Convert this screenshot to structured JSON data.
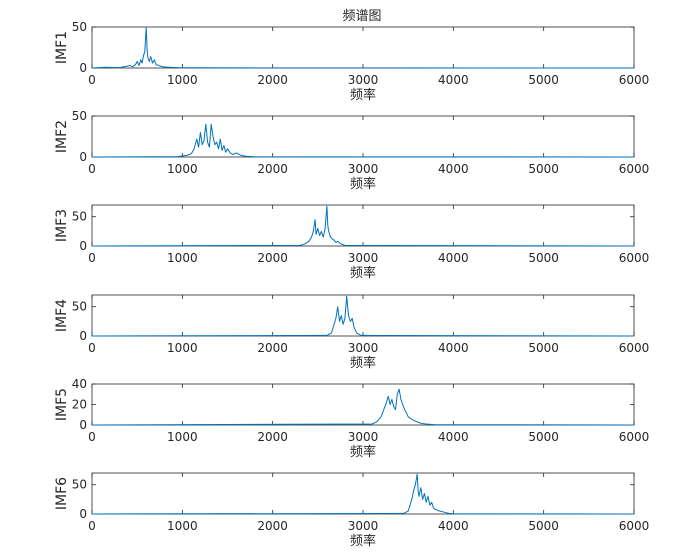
{
  "figure_title": "频谱图",
  "chart_data": [
    {
      "type": "line",
      "ylabel": "IMF1",
      "xlabel": "频率",
      "xlim": [
        0,
        6000
      ],
      "ylim": [
        0,
        50
      ],
      "xticks": [
        0,
        1000,
        2000,
        3000,
        4000,
        5000,
        6000
      ],
      "yticks": [
        0,
        50
      ],
      "grid": false,
      "color": "#0072BD",
      "series": [
        {
          "x": [
            0,
            150,
            300,
            380,
            420,
            450,
            480,
            500,
            520,
            540,
            555,
            570,
            585,
            600,
            610,
            620,
            635,
            650,
            670,
            690,
            710,
            740,
            780,
            850,
            950,
            1100,
            6000
          ],
          "y": [
            0,
            1,
            0.5,
            2,
            3,
            1.5,
            4,
            8,
            3,
            10,
            6,
            15,
            20,
            50,
            22,
            12,
            8,
            14,
            6,
            10,
            4,
            3,
            1.5,
            1,
            0.5,
            0.3,
            0
          ]
        }
      ]
    },
    {
      "type": "line",
      "ylabel": "IMF2",
      "xlabel": "频率",
      "xlim": [
        0,
        6000
      ],
      "ylim": [
        0,
        50
      ],
      "xticks": [
        0,
        1000,
        2000,
        3000,
        4000,
        5000,
        6000
      ],
      "yticks": [
        0,
        50
      ],
      "grid": false,
      "color": "#0072BD",
      "series": [
        {
          "x": [
            0,
            950,
            1050,
            1100,
            1130,
            1160,
            1180,
            1200,
            1220,
            1240,
            1260,
            1280,
            1300,
            1320,
            1340,
            1360,
            1380,
            1400,
            1420,
            1440,
            1460,
            1480,
            1500,
            1530,
            1560,
            1600,
            1650,
            1700,
            1800,
            6000
          ],
          "y": [
            0,
            0.5,
            2,
            4,
            10,
            22,
            12,
            30,
            15,
            20,
            40,
            18,
            12,
            40,
            25,
            15,
            18,
            10,
            22,
            8,
            14,
            6,
            10,
            5,
            3,
            5,
            2,
            1,
            0.3,
            0
          ]
        }
      ]
    },
    {
      "type": "line",
      "ylabel": "IMF3",
      "xlabel": "频率",
      "xlim": [
        0,
        6000
      ],
      "ylim": [
        0,
        70
      ],
      "xticks": [
        0,
        1000,
        2000,
        3000,
        4000,
        5000,
        6000
      ],
      "yticks": [
        0,
        50
      ],
      "grid": false,
      "color": "#0072BD",
      "series": [
        {
          "x": [
            0,
            2300,
            2350,
            2400,
            2430,
            2450,
            2470,
            2480,
            2500,
            2520,
            2540,
            2560,
            2580,
            2600,
            2610,
            2620,
            2640,
            2660,
            2680,
            2700,
            2720,
            2750,
            2800,
            6000
          ],
          "y": [
            0,
            1,
            3,
            8,
            15,
            25,
            45,
            20,
            30,
            18,
            25,
            15,
            30,
            68,
            35,
            25,
            15,
            12,
            10,
            6,
            8,
            4,
            1,
            0
          ]
        }
      ]
    },
    {
      "type": "line",
      "ylabel": "IMF4",
      "xlabel": "频率",
      "xlim": [
        0,
        6000
      ],
      "ylim": [
        0,
        70
      ],
      "xticks": [
        0,
        1000,
        2000,
        3000,
        4000,
        5000,
        6000
      ],
      "yticks": [
        0,
        50
      ],
      "grid": false,
      "color": "#0072BD",
      "series": [
        {
          "x": [
            0,
            2600,
            2650,
            2680,
            2700,
            2720,
            2740,
            2760,
            2780,
            2800,
            2820,
            2840,
            2860,
            2880,
            2900,
            2930,
            2980,
            6000
          ],
          "y": [
            0,
            1,
            5,
            20,
            30,
            50,
            25,
            35,
            20,
            30,
            68,
            35,
            25,
            30,
            15,
            5,
            1,
            0
          ]
        }
      ]
    },
    {
      "type": "line",
      "ylabel": "IMF5",
      "xlabel": "频率",
      "xlim": [
        0,
        6000
      ],
      "ylim": [
        0,
        40
      ],
      "xticks": [
        0,
        1000,
        2000,
        3000,
        4000,
        5000,
        6000
      ],
      "yticks": [
        0,
        20,
        40
      ],
      "grid": false,
      "color": "#0072BD",
      "series": [
        {
          "x": [
            0,
            3100,
            3150,
            3200,
            3230,
            3260,
            3280,
            3300,
            3320,
            3340,
            3360,
            3380,
            3400,
            3420,
            3440,
            3460,
            3480,
            3500,
            3550,
            3600,
            3650,
            3700,
            3800,
            6000
          ],
          "y": [
            0,
            1,
            3,
            8,
            15,
            22,
            28,
            20,
            25,
            18,
            15,
            30,
            35,
            25,
            20,
            15,
            12,
            8,
            5,
            3,
            1.5,
            1,
            0.3,
            0
          ]
        }
      ]
    },
    {
      "type": "line",
      "ylabel": "IMF6",
      "xlabel": "频率",
      "xlim": [
        0,
        6000
      ],
      "ylim": [
        0,
        70
      ],
      "xticks": [
        0,
        1000,
        2000,
        3000,
        4000,
        5000,
        6000
      ],
      "yticks": [
        0,
        50
      ],
      "grid": false,
      "color": "#0072BD",
      "series": [
        {
          "x": [
            0,
            3450,
            3500,
            3520,
            3540,
            3560,
            3580,
            3600,
            3610,
            3620,
            3640,
            3660,
            3680,
            3700,
            3720,
            3740,
            3760,
            3780,
            3800,
            3850,
            3900,
            3950,
            4000,
            6000
          ],
          "y": [
            0,
            1,
            5,
            15,
            25,
            40,
            50,
            68,
            40,
            30,
            45,
            25,
            35,
            20,
            30,
            15,
            20,
            10,
            8,
            5,
            3,
            1,
            0.3,
            0
          ]
        }
      ]
    }
  ]
}
